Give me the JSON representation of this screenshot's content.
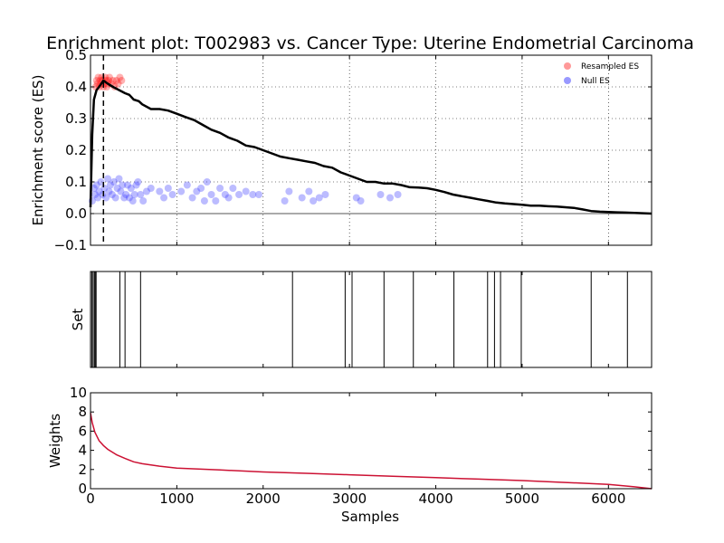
{
  "chart_data": [
    {
      "type": "line",
      "title": "Enrichment plot: T002983 vs. Cancer Type: Uterine Endometrial Carcinoma",
      "ylabel": "Enrichment score (ES)",
      "xlim": [
        0,
        6500
      ],
      "ylim": [
        -0.1,
        0.5
      ],
      "yticks": [
        "0.5",
        "0.4",
        "0.3",
        "0.2",
        "0.1",
        "0.0",
        "−0.1"
      ],
      "grid": true,
      "legend_position": "top-right",
      "legend": [
        {
          "label": "Resampled ES",
          "color": "#ff9999"
        },
        {
          "label": "Null ES",
          "color": "#9999ff"
        }
      ],
      "colors": {
        "es_line": "#000000",
        "resampled": "#ff0000",
        "null": "#4040ff",
        "zero_line": "#555555"
      },
      "max_es_position": 150,
      "es_curve": [
        [
          0,
          0.02
        ],
        [
          20,
          0.25
        ],
        [
          40,
          0.36
        ],
        [
          70,
          0.39
        ],
        [
          100,
          0.4
        ],
        [
          150,
          0.42
        ],
        [
          200,
          0.41
        ],
        [
          260,
          0.4
        ],
        [
          330,
          0.39
        ],
        [
          400,
          0.38
        ],
        [
          450,
          0.375
        ],
        [
          500,
          0.36
        ],
        [
          560,
          0.355
        ],
        [
          600,
          0.345
        ],
        [
          700,
          0.33
        ],
        [
          800,
          0.33
        ],
        [
          900,
          0.325
        ],
        [
          1000,
          0.315
        ],
        [
          1100,
          0.305
        ],
        [
          1200,
          0.295
        ],
        [
          1300,
          0.28
        ],
        [
          1400,
          0.265
        ],
        [
          1500,
          0.255
        ],
        [
          1600,
          0.24
        ],
        [
          1700,
          0.23
        ],
        [
          1800,
          0.215
        ],
        [
          1900,
          0.21
        ],
        [
          2000,
          0.2
        ],
        [
          2100,
          0.19
        ],
        [
          2200,
          0.18
        ],
        [
          2300,
          0.175
        ],
        [
          2400,
          0.17
        ],
        [
          2500,
          0.165
        ],
        [
          2600,
          0.16
        ],
        [
          2700,
          0.15
        ],
        [
          2800,
          0.145
        ],
        [
          2900,
          0.13
        ],
        [
          3000,
          0.12
        ],
        [
          3100,
          0.11
        ],
        [
          3200,
          0.1
        ],
        [
          3300,
          0.1
        ],
        [
          3400,
          0.095
        ],
        [
          3500,
          0.095
        ],
        [
          3600,
          0.09
        ],
        [
          3700,
          0.083
        ],
        [
          3800,
          0.082
        ],
        [
          3900,
          0.08
        ],
        [
          4000,
          0.075
        ],
        [
          4100,
          0.068
        ],
        [
          4200,
          0.06
        ],
        [
          4300,
          0.055
        ],
        [
          4400,
          0.05
        ],
        [
          4500,
          0.045
        ],
        [
          4600,
          0.04
        ],
        [
          4700,
          0.035
        ],
        [
          4800,
          0.032
        ],
        [
          4900,
          0.03
        ],
        [
          5000,
          0.028
        ],
        [
          5100,
          0.025
        ],
        [
          5200,
          0.025
        ],
        [
          5300,
          0.023
        ],
        [
          5400,
          0.022
        ],
        [
          5500,
          0.02
        ],
        [
          5600,
          0.018
        ],
        [
          5700,
          0.013
        ],
        [
          5800,
          0.008
        ],
        [
          5900,
          0.006
        ],
        [
          6000,
          0.005
        ],
        [
          6100,
          0.004
        ],
        [
          6200,
          0.003
        ],
        [
          6300,
          0.002
        ],
        [
          6400,
          0.001
        ],
        [
          6500,
          0.0
        ]
      ],
      "resampled_es": [
        [
          60,
          0.4
        ],
        [
          70,
          0.42
        ],
        [
          80,
          0.41
        ],
        [
          90,
          0.43
        ],
        [
          100,
          0.4
        ],
        [
          110,
          0.42
        ],
        [
          120,
          0.41
        ],
        [
          130,
          0.43
        ],
        [
          140,
          0.42
        ],
        [
          150,
          0.4
        ],
        [
          160,
          0.41
        ],
        [
          170,
          0.43
        ],
        [
          180,
          0.42
        ],
        [
          190,
          0.4
        ],
        [
          200,
          0.41
        ],
        [
          210,
          0.42
        ],
        [
          220,
          0.43
        ],
        [
          240,
          0.41
        ],
        [
          260,
          0.42
        ],
        [
          280,
          0.4
        ],
        [
          300,
          0.42
        ],
        [
          320,
          0.41
        ],
        [
          340,
          0.43
        ],
        [
          360,
          0.42
        ]
      ],
      "null_es": [
        [
          20,
          0.04
        ],
        [
          40,
          0.08
        ],
        [
          55,
          0.06
        ],
        [
          70,
          0.09
        ],
        [
          85,
          0.05
        ],
        [
          100,
          0.07
        ],
        [
          120,
          0.1
        ],
        [
          140,
          0.06
        ],
        [
          160,
          0.08
        ],
        [
          180,
          0.05
        ],
        [
          200,
          0.11
        ],
        [
          215,
          0.07
        ],
        [
          230,
          0.09
        ],
        [
          250,
          0.06
        ],
        [
          270,
          0.1
        ],
        [
          290,
          0.05
        ],
        [
          310,
          0.08
        ],
        [
          330,
          0.11
        ],
        [
          350,
          0.07
        ],
        [
          370,
          0.09
        ],
        [
          390,
          0.05
        ],
        [
          410,
          0.06
        ],
        [
          430,
          0.09
        ],
        [
          450,
          0.05
        ],
        [
          470,
          0.08
        ],
        [
          490,
          0.04
        ],
        [
          510,
          0.06
        ],
        [
          530,
          0.09
        ],
        [
          550,
          0.1
        ],
        [
          580,
          0.06
        ],
        [
          610,
          0.04
        ],
        [
          650,
          0.07
        ],
        [
          700,
          0.08
        ],
        [
          800,
          0.07
        ],
        [
          850,
          0.05
        ],
        [
          900,
          0.08
        ],
        [
          950,
          0.06
        ],
        [
          1050,
          0.07
        ],
        [
          1120,
          0.09
        ],
        [
          1180,
          0.05
        ],
        [
          1230,
          0.07
        ],
        [
          1280,
          0.08
        ],
        [
          1320,
          0.04
        ],
        [
          1350,
          0.1
        ],
        [
          1400,
          0.06
        ],
        [
          1450,
          0.04
        ],
        [
          1500,
          0.08
        ],
        [
          1560,
          0.06
        ],
        [
          1600,
          0.05
        ],
        [
          1650,
          0.08
        ],
        [
          1720,
          0.06
        ],
        [
          1800,
          0.07
        ],
        [
          1880,
          0.06
        ],
        [
          1950,
          0.06
        ],
        [
          2250,
          0.04
        ],
        [
          2300,
          0.07
        ],
        [
          2450,
          0.05
        ],
        [
          2530,
          0.07
        ],
        [
          2580,
          0.04
        ],
        [
          2650,
          0.05
        ],
        [
          2720,
          0.06
        ],
        [
          3080,
          0.05
        ],
        [
          3130,
          0.04
        ],
        [
          3360,
          0.06
        ],
        [
          3470,
          0.05
        ],
        [
          3560,
          0.06
        ]
      ]
    },
    {
      "type": "table",
      "ylabel": "Set",
      "xlim": [
        0,
        6500
      ],
      "hits": [
        15,
        30,
        45,
        55,
        65,
        340,
        400,
        580,
        2340,
        2950,
        3030,
        3400,
        3740,
        4210,
        4600,
        4680,
        4750,
        4990,
        5800,
        6220
      ]
    },
    {
      "type": "line",
      "xlabel": "Samples",
      "ylabel": "Weights",
      "xlim": [
        0,
        6500
      ],
      "ylim": [
        0,
        10
      ],
      "xticks": [
        "0",
        "1000",
        "2000",
        "3000",
        "4000",
        "5000",
        "6000"
      ],
      "yticks": [
        "10",
        "8",
        "6",
        "4",
        "2",
        "0"
      ],
      "colors": {
        "weights_line": "#cc1133"
      },
      "weights_curve": [
        [
          0,
          7.9
        ],
        [
          20,
          6.9
        ],
        [
          50,
          5.9
        ],
        [
          100,
          5.0
        ],
        [
          150,
          4.5
        ],
        [
          200,
          4.1
        ],
        [
          300,
          3.55
        ],
        [
          400,
          3.15
        ],
        [
          500,
          2.8
        ],
        [
          600,
          2.6
        ],
        [
          800,
          2.35
        ],
        [
          1000,
          2.15
        ],
        [
          1500,
          1.95
        ],
        [
          2000,
          1.75
        ],
        [
          2500,
          1.6
        ],
        [
          3000,
          1.45
        ],
        [
          3500,
          1.3
        ],
        [
          4000,
          1.15
        ],
        [
          4500,
          1.0
        ],
        [
          5000,
          0.85
        ],
        [
          5500,
          0.65
        ],
        [
          6000,
          0.45
        ],
        [
          6300,
          0.2
        ],
        [
          6500,
          0.0
        ]
      ]
    }
  ]
}
